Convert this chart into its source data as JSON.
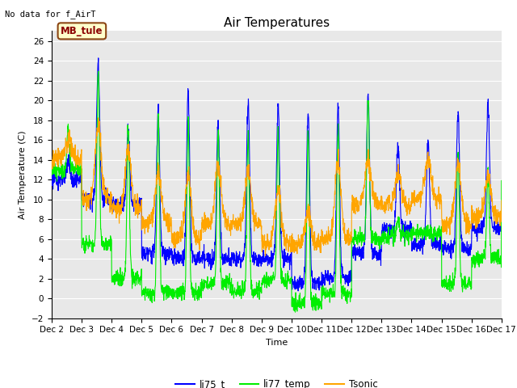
{
  "title": "Air Temperatures",
  "top_left_text": "No data for f_AirT",
  "ylabel": "Air Temperature (C)",
  "xlabel": "Time",
  "legend_box_label": "MB_tule",
  "ylim": [
    -2,
    27
  ],
  "yticks": [
    -2,
    0,
    2,
    4,
    6,
    8,
    10,
    12,
    14,
    16,
    18,
    20,
    22,
    24,
    26
  ],
  "xtick_labels": [
    "Dec 2",
    "Dec 3",
    "Dec 4",
    "Dec 5",
    "Dec 6",
    "Dec 7",
    "Dec 8",
    "Dec 9",
    "Dec 10",
    "Dec 11",
    "Dec 12",
    "Dec 13",
    "Dec 14",
    "Dec 15",
    "Dec 16",
    "Dec 17"
  ],
  "series": {
    "li75_t": {
      "color": "#0000FF",
      "linewidth": 0.8
    },
    "li77_temp": {
      "color": "#00EE00",
      "linewidth": 0.8
    },
    "Tsonic": {
      "color": "#FFA500",
      "linewidth": 0.8
    }
  },
  "plot_bg_color": "#E8E8E8",
  "fig_bg_color": "#FFFFFF",
  "grid_color": "#FFFFFF",
  "title_fontsize": 11,
  "axis_fontsize": 8,
  "tick_fontsize": 7.5
}
